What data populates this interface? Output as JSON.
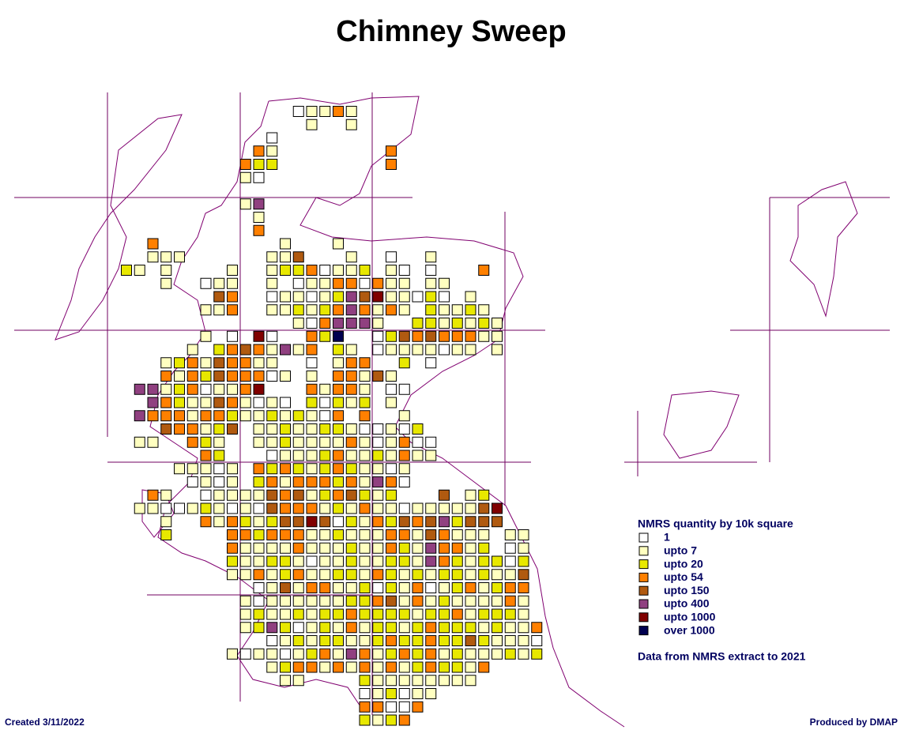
{
  "header": {
    "title": "Chimney Sweep"
  },
  "legend": {
    "title": "NMRS quantity by 10k square",
    "items": [
      {
        "label": "1",
        "color": "#ffffff"
      },
      {
        "label": "upto 7",
        "color": "#ffffc0"
      },
      {
        "label": "upto 20",
        "color": "#e8e800"
      },
      {
        "label": "upto 54",
        "color": "#ff8000"
      },
      {
        "label": "upto 150",
        "color": "#b05a10"
      },
      {
        "label": "upto 400",
        "color": "#904080"
      },
      {
        "label": "upto 1000",
        "color": "#800000"
      },
      {
        "label": "over 1000",
        "color": "#000050"
      }
    ]
  },
  "note": "Data from NMRS extract to 2021",
  "footer": {
    "created": "Created 3/11/2022",
    "producer": "Produced by DMAP"
  },
  "grid": {
    "rows": [
      ".............01131",
      "..............1..1",
      "...........0",
      "..........31........3",
      ".........322........3",
      ".........10",
      "",
      ".........15",
      "..........1",
      "..........3",
      "..3.........1...1",
      "..111......114...1..0..1",
      "21.1....1..12230112.10.0...3",
      "...1..011..1.011330311.11",
      ".......43..01101254611020.1",
      "......113..11212353131.21121",
      ".............1035551..2212121",
      "......1.0.60..327..0243433311",
      ".....1.23431513.21.01111011.1",
      "...123143311..0.133..2.0",
      "...3132433301.1.33141",
      ".5512301136...31331.00",
      "..53211431010.20212.1",
      ".5333133211212103.3..1",
      "...433124.1121122100102",
      ".11..321..11211113101300",
      "......32...0111231121311",
      "....11101.323212321101",
      ".....0101.231333231530",
      "..31..011114341234212...4.12",
      ".1100121010433312131101111146",
      "...1..31321244640213243452444",
      "...2....33233311211133143111.11",
      "........31111311121132153312.01",
      "........21122101121122153212202",
      "........11312311221321212212114",
      "..........014133112021301231233",
      ".........1011111122341312111131",
      ".........1211212232222122312221",
      ".........12520121312212322212113",
      "...........012122112322322421110",
      "........101101231531232312111212",
      "...........12331313131232213",
      "............11....211111111",
      "..................012011",
      "..................33003",
      "..................2123"
    ]
  }
}
